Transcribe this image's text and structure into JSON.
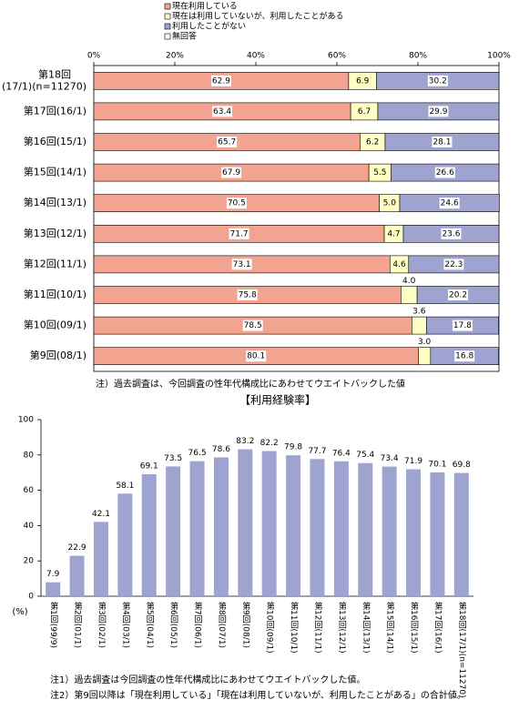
{
  "chart_data": [
    {
      "type": "barh",
      "stacked": true,
      "categories": [
        "第18回\n(17/1)(n=11270)",
        "第17回(16/1)",
        "第16回(15/1)",
        "第15回(14/1)",
        "第14回(13/1)",
        "第13回(12/1)",
        "第12回(11/1)",
        "第11回(10/1)",
        "第10回(09/1)",
        "第9回(08/1)"
      ],
      "series": [
        {
          "name": "現在利用している",
          "color": "#f2a490",
          "values": [
            62.9,
            63.4,
            65.7,
            67.9,
            70.5,
            71.7,
            73.1,
            75.8,
            78.5,
            80.1
          ],
          "value_labels": [
            "62.9",
            "63.4",
            "65.7",
            "67.9",
            "70.5",
            "71.7",
            "73.1",
            "75.8",
            "78.5",
            "80.1"
          ]
        },
        {
          "name": "現在は利用していないが、利用したことがある",
          "color": "#ffffc4",
          "values": [
            6.9,
            6.7,
            6.2,
            5.5,
            5.0,
            4.7,
            4.6,
            4.0,
            3.6,
            3.0
          ],
          "value_labels": [
            "6.9",
            "6.7",
            "6.2",
            "5.5",
            "5.0",
            "4.7",
            "4.6",
            "4.0",
            "3.6",
            "3.0"
          ]
        },
        {
          "name": "利用したことがない",
          "color": "#9ea3d0",
          "values": [
            30.2,
            29.9,
            28.1,
            26.6,
            24.6,
            23.6,
            22.3,
            20.2,
            17.8,
            16.8
          ],
          "value_labels": [
            "30.2",
            "29.9",
            "28.1",
            "26.6",
            "24.6",
            "23.6",
            "22.3",
            "20.2",
            "17.8",
            "16.8"
          ]
        },
        {
          "name": "無回答",
          "color": "#ffffff",
          "values": [
            0,
            0,
            0,
            0,
            0,
            0,
            0,
            0,
            0,
            0
          ]
        }
      ],
      "xlim": [
        0,
        100
      ],
      "xticks": [
        {
          "value": 0,
          "label": "0%"
        },
        {
          "value": 20,
          "label": "20%"
        },
        {
          "value": 40,
          "label": "40%"
        },
        {
          "value": 60,
          "label": "60%"
        },
        {
          "value": 80,
          "label": "80%"
        },
        {
          "value": 100,
          "label": "100%"
        }
      ],
      "note": "注）過去調査は、今回調査の性年代構成比にあわせてウエイトバックした値"
    },
    {
      "type": "bar",
      "title": "【利用経験率】",
      "y_label": "(%)",
      "categories": [
        "第1回(99/9)",
        "第2回(01/1)",
        "第3回(02/1)",
        "第4回(03/1)",
        "第5回(04/1)",
        "第6回(05/1)",
        "第7回(06/1)",
        "第8回(07/1)",
        "第9回(08/1)",
        "第10回(09/1)",
        "第11回(10/1)",
        "第12回(11/1)",
        "第13回(12/1)",
        "第14回(13/1)",
        "第15回(14/1)",
        "第16回(15/1)",
        "第17回(16/1)",
        "第18回(17/1)(n=11270)"
      ],
      "values": [
        7.9,
        22.9,
        42.1,
        58.1,
        69.1,
        73.5,
        76.5,
        78.6,
        83.2,
        82.2,
        79.8,
        77.7,
        76.4,
        75.4,
        73.4,
        71.9,
        70.1,
        69.8
      ],
      "color": "#9ea3d0",
      "ylim": [
        0,
        100
      ],
      "yticks": [
        0,
        20,
        40,
        60,
        80,
        100
      ],
      "notes": [
        "注1）過去調査は今回調査の性年代構成比にあわせてウエイトバックした値。",
        "注2）第9回以降は「現在利用している」「現在は利用していないが、利用したことがある」の合計値。"
      ]
    }
  ]
}
